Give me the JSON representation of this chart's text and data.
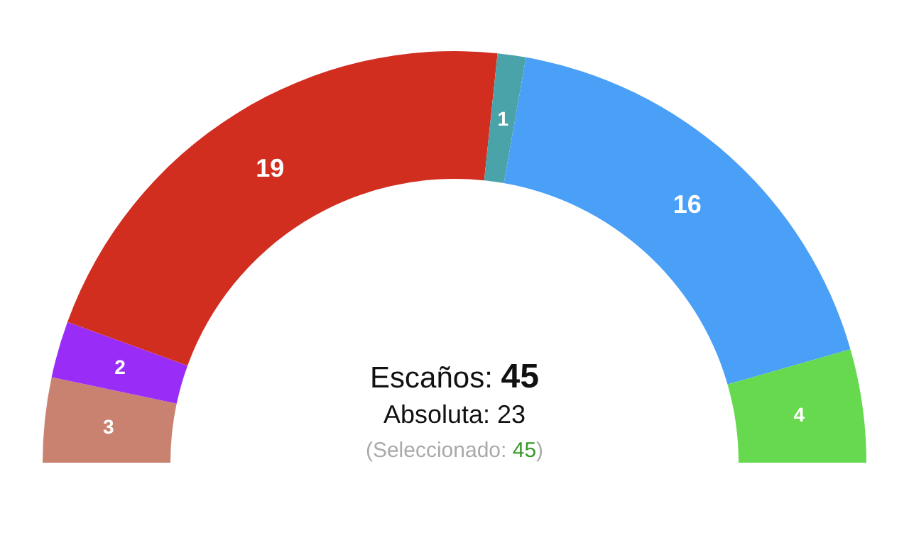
{
  "chart_data": {
    "type": "donut",
    "categories": [
      null,
      null,
      null,
      null,
      null,
      null
    ],
    "values": [
      3,
      2,
      19,
      1,
      16,
      4
    ],
    "colors": [
      "#c8826f",
      "#9a2cf7",
      "#d12e20",
      "#4aa3a9",
      "#4a9ff6",
      "#66d94f"
    ],
    "data_labels": true,
    "annotations": [
      "Escaños: 45",
      "Absoluta: 23",
      "(Seleccionado: 45)"
    ]
  }
}
